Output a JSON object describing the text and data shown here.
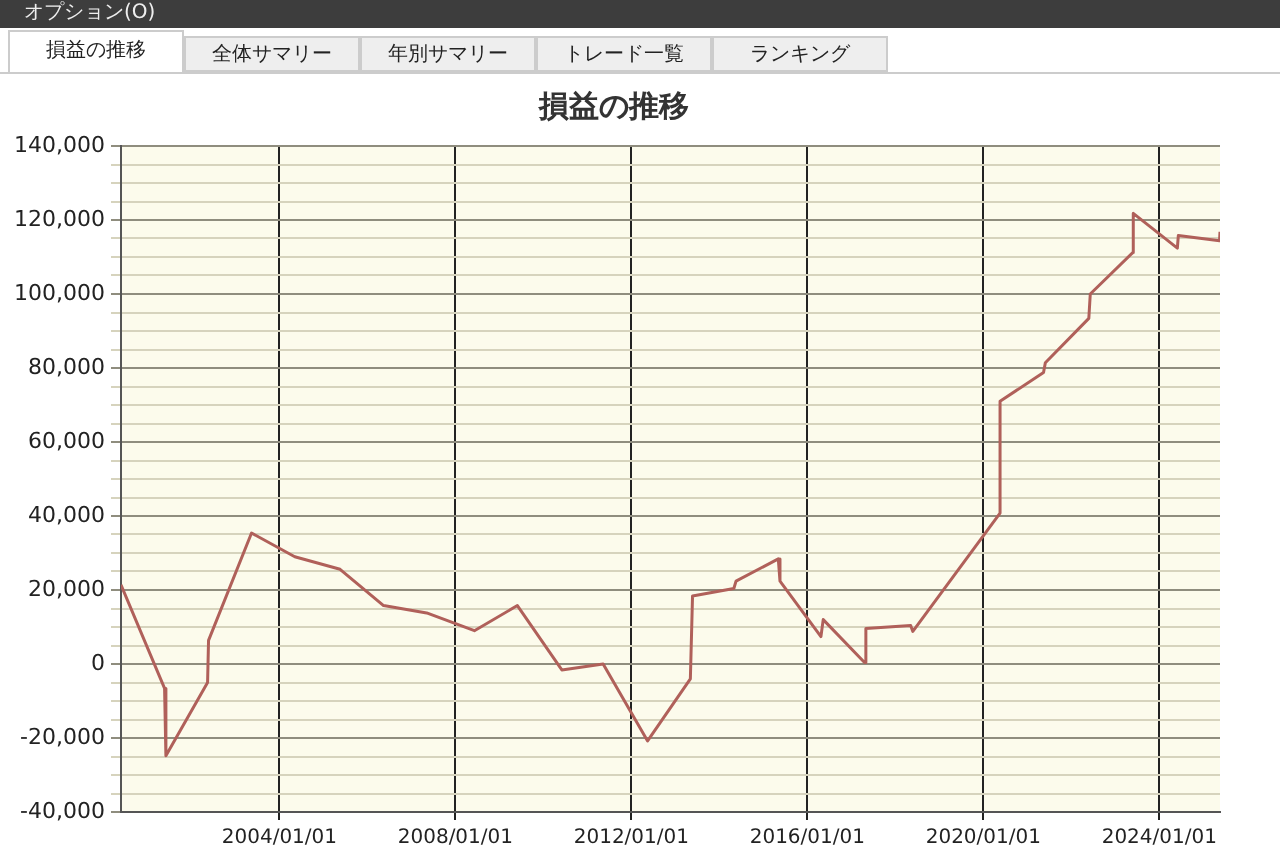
{
  "chart_data": {
    "type": "line",
    "title": "損益の推移",
    "annotations": [
      "オプション(O)",
      "損益の推移",
      "全体サマリー",
      "年別サマリー",
      "トレード一覧",
      "ランキング"
    ],
    "x": [
      "2000-05-26",
      "2001-05-23",
      "2001-06-03",
      "2002-05-15",
      "2002-05-23",
      "2003-05-15",
      "2004-05-08",
      "2005-05-19",
      "2006-05-15",
      "2007-05-08",
      "2008-06-07",
      "2009-05-30",
      "2010-06-03",
      "2011-05-12",
      "2012-05-15",
      "2013-05-05",
      "2013-05-23",
      "2014-05-01",
      "2014-05-19",
      "2015-05-05",
      "2015-05-19",
      "2016-04-23",
      "2016-05-12",
      "2017-04-20",
      "2017-05-01",
      "2018-05-08",
      "2018-05-26",
      "2020-05-19",
      "2020-05-19",
      "2021-05-15",
      "2021-05-30",
      "2022-05-26",
      "2022-06-07",
      "2023-05-26",
      "2023-05-30",
      "2024-05-30",
      "2024-06-07",
      "2025-05-15",
      "2025-05-19"
    ],
    "series": [
      {
        "color": "#b0605a",
        "values": [
          21400,
          -6600,
          -24800,
          -5000,
          6400,
          35400,
          29000,
          25600,
          15800,
          13800,
          9000,
          15800,
          -1600,
          0,
          -20800,
          -4000,
          18400,
          20400,
          22400,
          28400,
          22400,
          7400,
          12000,
          400,
          9600,
          10400,
          8800,
          40800,
          71000,
          78800,
          81400,
          93400,
          100000,
          111200,
          121800,
          112400,
          115800,
          114400,
          116800
        ]
      }
    ],
    "xlim": [
      "2000-05-26",
      "2025-05-19"
    ],
    "xticks": [
      {
        "value": "2004-01-01",
        "label": "2004/01/01"
      },
      {
        "value": "2008-01-01",
        "label": "2008/01/01"
      },
      {
        "value": "2012-01-01",
        "label": "2012/01/01"
      },
      {
        "value": "2016-01-01",
        "label": "2016/01/01"
      },
      {
        "value": "2020-01-01",
        "label": "2020/01/01"
      },
      {
        "value": "2024-01-01",
        "label": "2024/01/01"
      }
    ],
    "ylim": [
      -40000,
      140000
    ],
    "yticks": [
      {
        "value": -40000,
        "label": "-40,000"
      },
      {
        "value": -35000,
        "label": null
      },
      {
        "value": -30000,
        "label": null
      },
      {
        "value": -25000,
        "label": null
      },
      {
        "value": -20000,
        "label": "-20,000"
      },
      {
        "value": -15000,
        "label": null
      },
      {
        "value": -10000,
        "label": null
      },
      {
        "value": -5000,
        "label": null
      },
      {
        "value": 0,
        "label": "0"
      },
      {
        "value": 5000,
        "label": null
      },
      {
        "value": 10000,
        "label": null
      },
      {
        "value": 15000,
        "label": null
      },
      {
        "value": 20000,
        "label": "20,000"
      },
      {
        "value": 25000,
        "label": null
      },
      {
        "value": 30000,
        "label": null
      },
      {
        "value": 35000,
        "label": null
      },
      {
        "value": 40000,
        "label": "40,000"
      },
      {
        "value": 45000,
        "label": null
      },
      {
        "value": 50000,
        "label": null
      },
      {
        "value": 55000,
        "label": null
      },
      {
        "value": 60000,
        "label": "60,000"
      },
      {
        "value": 65000,
        "label": null
      },
      {
        "value": 70000,
        "label": null
      },
      {
        "value": 75000,
        "label": null
      },
      {
        "value": 80000,
        "label": "80,000"
      },
      {
        "value": 85000,
        "label": null
      },
      {
        "value": 90000,
        "label": null
      },
      {
        "value": 95000,
        "label": null
      },
      {
        "value": 100000,
        "label": "100,000"
      },
      {
        "value": 105000,
        "label": null
      },
      {
        "value": 110000,
        "label": null
      },
      {
        "value": 115000,
        "label": null
      },
      {
        "value": 120000,
        "label": "120,000"
      },
      {
        "value": 125000,
        "label": null
      },
      {
        "value": 130000,
        "label": null
      },
      {
        "value": 135000,
        "label": null
      },
      {
        "value": 140000,
        "label": "140,000"
      }
    ],
    "grid": true,
    "legend": false,
    "marker": "none",
    "line_style": "solid"
  }
}
